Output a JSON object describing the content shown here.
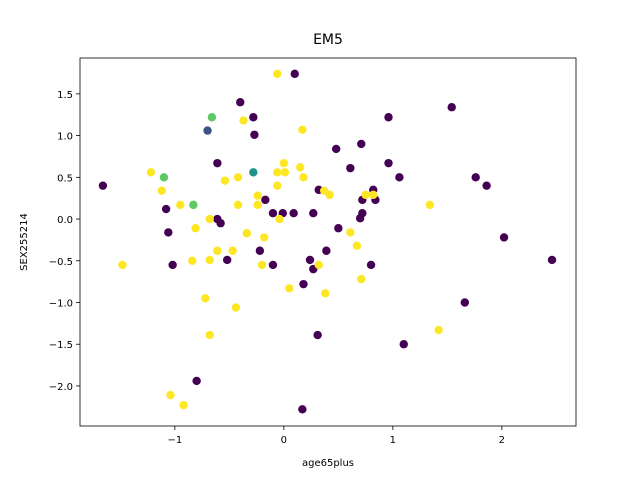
{
  "chart_data": {
    "type": "scatter",
    "title": "EM5",
    "x_label": "age65plus",
    "y_label": "SEX255214",
    "xlim": [
      -1.87,
      2.68
    ],
    "ylim": [
      -2.48,
      1.93
    ],
    "xticks": [
      {
        "value": -1,
        "label": "−1"
      },
      0,
      1,
      2
    ],
    "yticks": [
      {
        "value": -2,
        "label": "−2.0"
      },
      {
        "value": -1.5,
        "label": "−1.5"
      },
      {
        "value": -1,
        "label": "−1.0"
      },
      {
        "value": -0.5,
        "label": "−0.5"
      },
      {
        "value": 0,
        "label": "0.0"
      },
      0.5,
      {
        "value": 1,
        "label": "1.0"
      },
      1.5
    ],
    "grid": false,
    "series": [
      {
        "color": "#440154",
        "x": [
          -1.66,
          -0.4,
          -0.28,
          0.1,
          -0.27,
          -0.61,
          0.48,
          0.71,
          0.96,
          1.54,
          0.61,
          0.96,
          1.06,
          1.76,
          1.86,
          0.32,
          0.82,
          0.72,
          0.84,
          -1.08,
          -0.17,
          -0.1,
          -0.01,
          0.09,
          0.27,
          0.72,
          0.7,
          -0.61,
          -0.58,
          -1.06,
          0.5,
          2.02,
          -0.22,
          0.39,
          -1.02,
          -0.52,
          -0.1,
          0.24,
          0.27,
          0.8,
          2.46,
          0.18,
          1.66,
          0.31,
          1.1,
          -0.8,
          0.17
        ],
        "values": [
          0.4,
          1.4,
          1.22,
          1.74,
          1.01,
          0.67,
          0.84,
          0.9,
          1.22,
          1.34,
          0.61,
          0.67,
          0.5,
          0.5,
          0.4,
          0.35,
          0.35,
          0.23,
          0.23,
          0.12,
          0.23,
          0.07,
          0.07,
          0.07,
          0.07,
          0.07,
          0.01,
          0.0,
          -0.05,
          -0.16,
          -0.11,
          -0.22,
          -0.38,
          -0.38,
          -0.55,
          -0.49,
          -0.55,
          -0.49,
          -0.6,
          -0.55,
          -0.49,
          -0.78,
          -1.0,
          -1.39,
          -1.5,
          -1.94,
          -2.28
        ]
      },
      {
        "color": "#fde725",
        "x": [
          -0.06,
          -0.37,
          0.17,
          0.0,
          0.15,
          -1.22,
          -0.06,
          0.01,
          0.18,
          -0.54,
          -0.42,
          -1.12,
          -0.06,
          0.37,
          0.42,
          0.75,
          0.82,
          -0.24,
          -0.24,
          -0.95,
          -0.42,
          1.34,
          -0.81,
          -0.68,
          -0.04,
          -0.34,
          -0.18,
          -0.61,
          -0.47,
          0.61,
          0.67,
          -0.84,
          -0.68,
          -0.2,
          0.32,
          -1.48,
          0.05,
          0.38,
          0.71,
          -0.72,
          -0.44,
          -0.68,
          1.42,
          -1.04,
          -0.92
        ],
        "values": [
          1.74,
          1.18,
          1.07,
          0.67,
          0.62,
          0.56,
          0.56,
          0.56,
          0.5,
          0.46,
          0.5,
          0.34,
          0.4,
          0.34,
          0.29,
          0.29,
          0.29,
          0.28,
          0.17,
          0.17,
          0.17,
          0.17,
          -0.11,
          0.0,
          0.0,
          -0.17,
          -0.22,
          -0.38,
          -0.38,
          -0.16,
          -0.32,
          -0.5,
          -0.49,
          -0.55,
          -0.55,
          -0.55,
          -0.83,
          -0.89,
          -0.72,
          -0.95,
          -1.06,
          -1.39,
          -1.33,
          -2.11,
          -2.23
        ]
      },
      {
        "color": "#5ec962",
        "x": [
          -0.66,
          -1.1,
          -0.83
        ],
        "values": [
          1.22,
          0.5,
          0.17
        ]
      },
      {
        "color": "#3b528b",
        "x": [
          -0.7
        ],
        "values": [
          1.06
        ]
      },
      {
        "color": "#21918c",
        "x": [
          -0.28
        ],
        "values": [
          0.56
        ]
      }
    ]
  }
}
